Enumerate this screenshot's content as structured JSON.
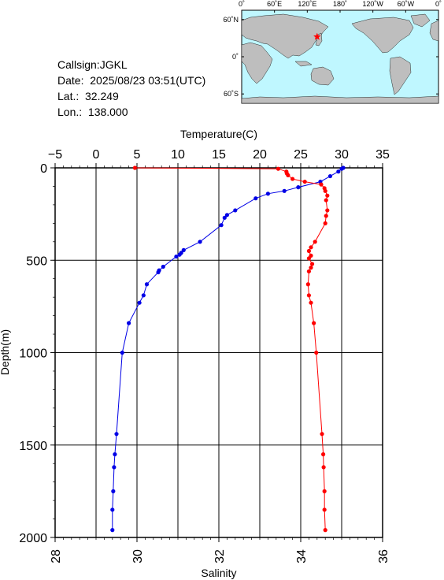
{
  "info": {
    "callsign": "Callsign:JGKL",
    "date": "Date:  2025/08/23 03:51(UTC)",
    "lat": "Lat.:  32.249",
    "lon": "Lon.:  138.000"
  },
  "map": {
    "lon_ticks": [
      "0˚",
      "60˚E",
      "120˚E",
      "180˚",
      "120˚W",
      "60˚W",
      "0˚"
    ],
    "lat_ticks": [
      "60˚N",
      "0˚",
      "60˚S"
    ],
    "station": {
      "lat": 32.249,
      "lon": 138.0,
      "marker_color": "#ff0000"
    },
    "ocean_color": "#bff7ff",
    "land_color": "#bebebe"
  },
  "chart_data": {
    "type": "line",
    "y_label": "Depth(m)",
    "y_range": [
      0,
      2000
    ],
    "y_inverted": true,
    "y_ticks": [
      "0",
      "500",
      "1000",
      "1500",
      "2000"
    ],
    "top_axis": {
      "label": "Temperature(C)",
      "range": [
        -5,
        35
      ],
      "ticks": [
        "−5",
        "0",
        "5",
        "10",
        "15",
        "20",
        "25",
        "30",
        "35"
      ]
    },
    "bottom_axis": {
      "label": "Salinity",
      "range": [
        28,
        36
      ],
      "ticks": [
        "28",
        "30",
        "32",
        "34",
        "36"
      ]
    },
    "grid": true,
    "series": [
      {
        "axis": "top",
        "color": "#0000e6",
        "points": [
          [
            30.2,
            0
          ],
          [
            30.0,
            5
          ],
          [
            29.6,
            20
          ],
          [
            28.6,
            45
          ],
          [
            27.4,
            75
          ],
          [
            24.7,
            105
          ],
          [
            23.0,
            125
          ],
          [
            21.0,
            140
          ],
          [
            19.5,
            165
          ],
          [
            17.0,
            230
          ],
          [
            16.0,
            255
          ],
          [
            15.7,
            270
          ],
          [
            15.3,
            310
          ],
          [
            12.7,
            400
          ],
          [
            10.7,
            445
          ],
          [
            10.4,
            460
          ],
          [
            10.2,
            470
          ],
          [
            9.8,
            480
          ],
          [
            8.2,
            535
          ],
          [
            7.7,
            555
          ],
          [
            7.6,
            565
          ],
          [
            6.2,
            630
          ],
          [
            5.8,
            690
          ],
          [
            5.3,
            730
          ],
          [
            4.0,
            840
          ],
          [
            3.2,
            1000
          ],
          [
            2.5,
            1440
          ],
          [
            2.3,
            1550
          ],
          [
            2.2,
            1620
          ],
          [
            2.1,
            1750
          ],
          [
            2.0,
            1850
          ],
          [
            2.0,
            1960
          ]
        ]
      },
      {
        "axis": "bottom",
        "color": "#ff0000",
        "points": [
          [
            29.95,
            0
          ],
          [
            33.45,
            5
          ],
          [
            33.65,
            20
          ],
          [
            33.66,
            30
          ],
          [
            33.69,
            40
          ],
          [
            33.8,
            60
          ],
          [
            34.1,
            75
          ],
          [
            34.5,
            90
          ],
          [
            34.58,
            110
          ],
          [
            34.6,
            125
          ],
          [
            34.65,
            150
          ],
          [
            34.62,
            175
          ],
          [
            34.65,
            230
          ],
          [
            34.62,
            260
          ],
          [
            34.6,
            300
          ],
          [
            34.35,
            400
          ],
          [
            34.25,
            430
          ],
          [
            34.2,
            450
          ],
          [
            34.25,
            475
          ],
          [
            34.2,
            490
          ],
          [
            34.28,
            520
          ],
          [
            34.25,
            540
          ],
          [
            34.2,
            560
          ],
          [
            34.18,
            630
          ],
          [
            34.2,
            690
          ],
          [
            34.25,
            730
          ],
          [
            34.32,
            840
          ],
          [
            34.38,
            1000
          ],
          [
            34.52,
            1440
          ],
          [
            34.55,
            1550
          ],
          [
            34.56,
            1620
          ],
          [
            34.58,
            1750
          ],
          [
            34.58,
            1850
          ],
          [
            34.6,
            1960
          ]
        ]
      }
    ]
  }
}
